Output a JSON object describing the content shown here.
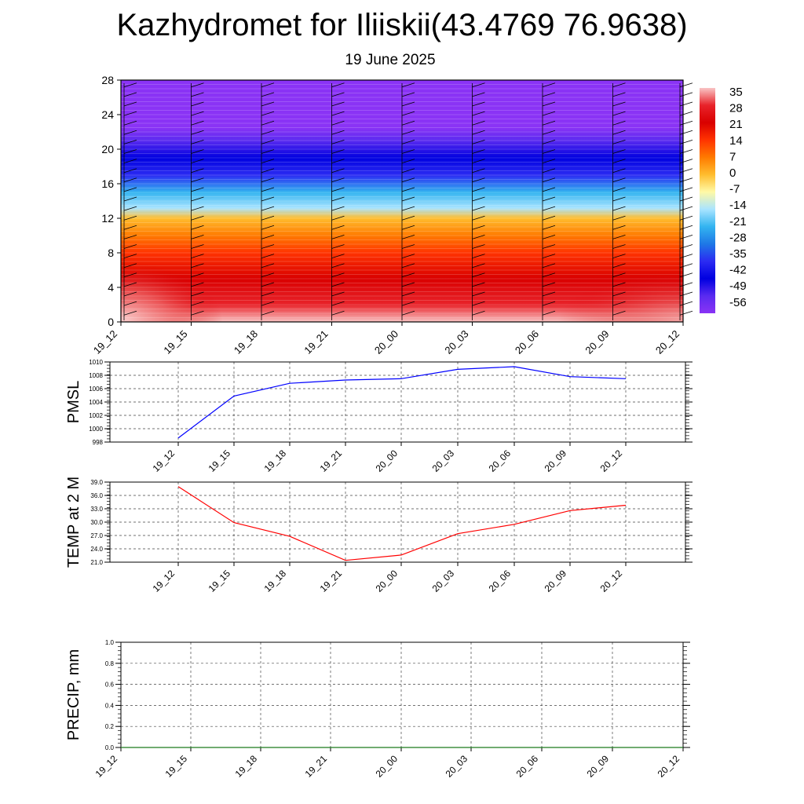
{
  "title": "Kazhydromet for Iliiskii(43.4769 76.9638)",
  "subtitle": "19 June 2025",
  "chart_data": [
    {
      "id": "temp-profile",
      "type": "heatmap",
      "y_ticks": [
        0,
        4,
        8,
        12,
        16,
        20,
        24,
        28
      ],
      "ylim": [
        0,
        28
      ],
      "x_ticks": [
        "19_12",
        "19_15",
        "19_18",
        "19_21",
        "20_00",
        "20_03",
        "20_06",
        "20_09",
        "20_12"
      ],
      "colorbar_labels": [
        "35",
        "28",
        "21",
        "14",
        "7",
        "0",
        "-7",
        "-14",
        "-21",
        "-28",
        "-35",
        "-42",
        "-49",
        "-56"
      ],
      "colorbar_stops": [
        "#f9c4c4",
        "#e8232a",
        "#d90000",
        "#ff3300",
        "#ff7a00",
        "#ffbd2e",
        "#fff9a6",
        "#a9e4ff",
        "#33b4f0",
        "#1e78e6",
        "#2b2bf2",
        "#0000e0",
        "#5a2bf0",
        "#8a33f5"
      ],
      "profile": [
        {
          "level": 0,
          "value": 33
        },
        {
          "level": 2,
          "value": 28
        },
        {
          "level": 5,
          "value": 22
        },
        {
          "level": 8,
          "value": 16
        },
        {
          "level": 10,
          "value": 9
        },
        {
          "level": 12,
          "value": 2
        },
        {
          "level": 13.2,
          "value": -12
        },
        {
          "level": 15,
          "value": -24
        },
        {
          "level": 17,
          "value": -32
        },
        {
          "level": 19,
          "value": -40
        },
        {
          "level": 21,
          "value": -52
        },
        {
          "level": 22.5,
          "value": -60
        },
        {
          "level": 28,
          "value": -60
        }
      ]
    },
    {
      "id": "pmsl",
      "type": "line",
      "ylabel": "PMSL",
      "categories": [
        "19_12",
        "19_15",
        "19_18",
        "19_21",
        "20_00",
        "20_03",
        "20_06",
        "20_09",
        "20_12"
      ],
      "values": [
        998.6,
        1004.9,
        1006.8,
        1007.3,
        1007.5,
        1008.9,
        1009.3,
        1007.8,
        1007.5
      ],
      "y_ticks": [
        "998",
        "1000",
        "1002",
        "1004",
        "1006",
        "1008",
        "1010"
      ],
      "ylim": [
        998,
        1010
      ],
      "color": "#0000ff"
    },
    {
      "id": "temp2m",
      "type": "line",
      "ylabel": "TEMP at 2 M",
      "categories": [
        "19_12",
        "19_15",
        "19_18",
        "19_21",
        "20_00",
        "20_03",
        "20_06",
        "20_09",
        "20_12"
      ],
      "values": [
        38.0,
        29.9,
        26.8,
        21.4,
        22.6,
        27.4,
        29.5,
        32.6,
        33.8
      ],
      "y_ticks": [
        "21.0",
        "24.0",
        "27.0",
        "30.0",
        "33.0",
        "36.0",
        "39.0"
      ],
      "ylim": [
        21,
        39
      ],
      "color": "#ff0000"
    },
    {
      "id": "precip",
      "type": "line",
      "ylabel": "PRECIP, mm",
      "categories": [
        "19_12",
        "19_15",
        "19_18",
        "19_21",
        "20_00",
        "20_03",
        "20_06",
        "20_09",
        "20_12"
      ],
      "values": [
        0,
        0,
        0,
        0,
        0,
        0,
        0,
        0,
        0
      ],
      "y_ticks": [
        "0.0",
        "0.2",
        "0.4",
        "0.6",
        "0.8",
        "1.0"
      ],
      "ylim": [
        0,
        1
      ],
      "color": "#1b7a1b"
    }
  ]
}
